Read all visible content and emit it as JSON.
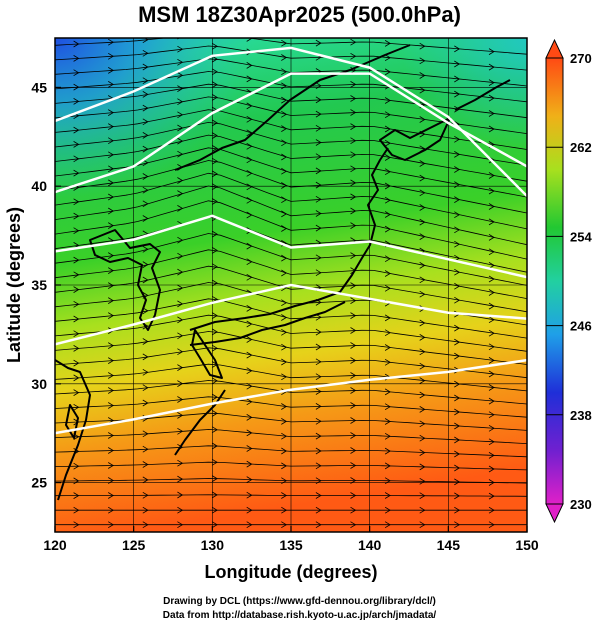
{
  "title": "MSM 18Z30Apr2025 (500.0hPa)",
  "xlabel": "Longitude (degrees)",
  "ylabel": "Latitude  (degrees)",
  "x_ticks": [
    "120",
    "125",
    "130",
    "135",
    "140",
    "145",
    "150"
  ],
  "y_ticks": [
    "25",
    "30",
    "35",
    "40",
    "45"
  ],
  "colorbar_ticks": [
    "230",
    "238",
    "246",
    "254",
    "262",
    "270"
  ],
  "credit_line1": "Drawing by DCL (https://www.gfd-dennou.org/library/dcl/)",
  "credit_line2": "Data from http://database.rish.kyoto-u.ac.jp/arch/jmadata/",
  "colors": {
    "cold": "#1f4fe0",
    "cool": "#22c8c0",
    "mid": "#22c832",
    "warm": "#c8e61e",
    "hot": "#ff6a14",
    "contour": "#ffffff",
    "streamline": "#000000"
  },
  "chart_data": {
    "type": "heatmap",
    "variable": "temperature at 500.0hPa",
    "xlim": [
      120,
      150
    ],
    "ylim": [
      22.5,
      47.5
    ],
    "color_range": [
      230,
      270
    ],
    "grid": true,
    "streamline_direction": "west-to-east",
    "contour_lines_lat": [
      {
        "lon": [
          120,
          125,
          130,
          135,
          140,
          145,
          150
        ],
        "lat": [
          43.3,
          44.8,
          46.6,
          47.0,
          46.0,
          43.5,
          39.5
        ]
      },
      {
        "lon": [
          120,
          125,
          130,
          135,
          140,
          145,
          150
        ],
        "lat": [
          39.7,
          41.0,
          43.7,
          45.7,
          45.7,
          43.2,
          41.0
        ]
      },
      {
        "lon": [
          120,
          125,
          130,
          135,
          140,
          145,
          150
        ],
        "lat": [
          36.7,
          37.3,
          38.5,
          36.9,
          37.2,
          36.3,
          35.4
        ]
      },
      {
        "lon": [
          120,
          125,
          130,
          135,
          140,
          145,
          150
        ],
        "lat": [
          32.0,
          33.0,
          34.1,
          35.0,
          34.3,
          33.6,
          33.3
        ]
      },
      {
        "lon": [
          120,
          125,
          130,
          135,
          140,
          145,
          150
        ],
        "lat": [
          27.5,
          28.2,
          29.0,
          29.7,
          30.2,
          30.6,
          31.2
        ]
      }
    ]
  }
}
